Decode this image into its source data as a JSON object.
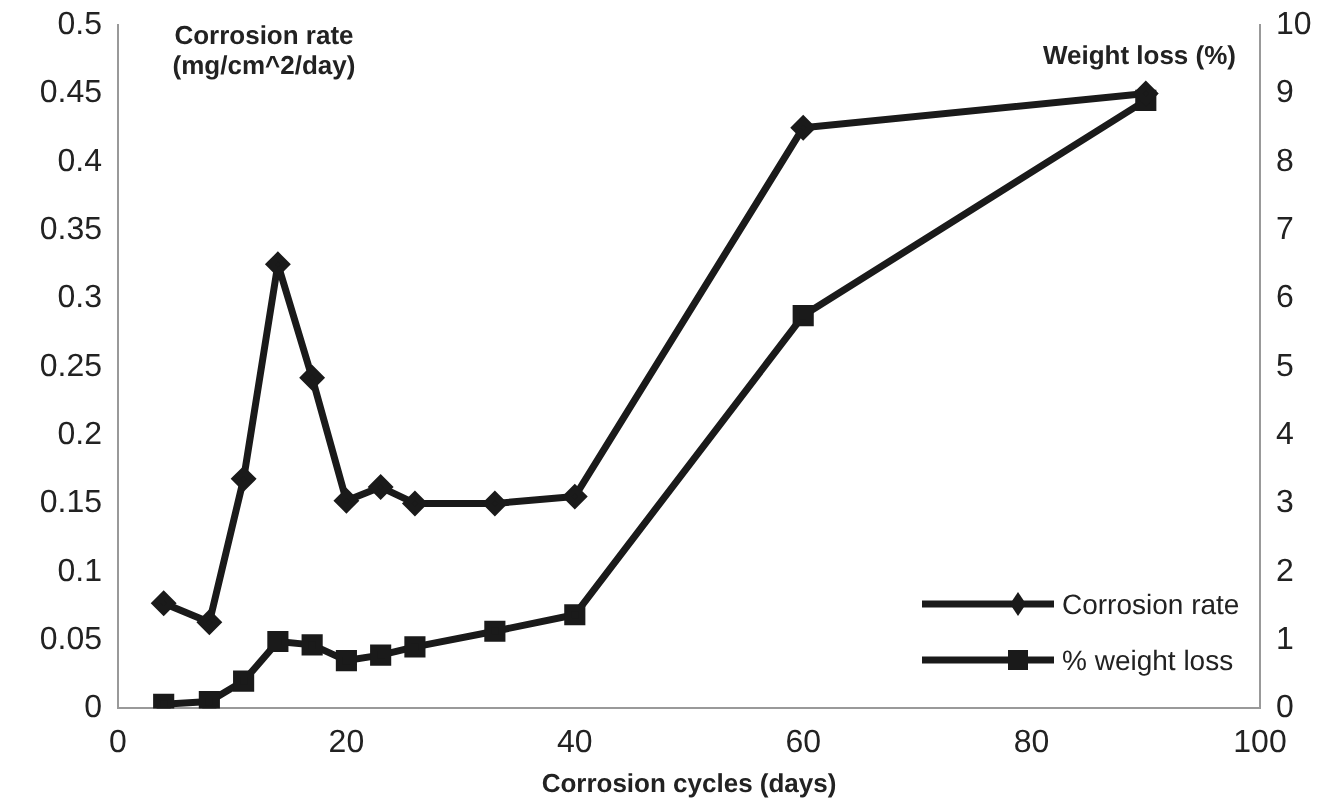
{
  "chart_data": {
    "type": "line",
    "xlabel": "Corrosion cycles (days)",
    "ylabel": "Corrosion rate (mg/cm^2/day)",
    "y2label": "Weight loss (%)",
    "x": [
      4,
      8,
      11,
      14,
      17,
      20,
      23,
      26,
      33,
      40,
      60,
      90
    ],
    "series": [
      {
        "name": "Corrosion rate",
        "color": "#1a1a1a",
        "marker": "diamond",
        "values": [
          0.077,
          0.063,
          0.168,
          0.325,
          0.242,
          0.152,
          0.162,
          0.15,
          0.15,
          0.155,
          0.425,
          0.45
        ]
      },
      {
        "name": "% weight loss",
        "color": "#1a1a1a",
        "marker": "square",
        "axis": "y2",
        "values": [
          0.06,
          0.1,
          0.4,
          0.98,
          0.93,
          0.7,
          0.78,
          0.9,
          1.13,
          1.37,
          5.75,
          8.9
        ]
      }
    ],
    "xlim": [
      0,
      100
    ],
    "xticks": [
      0,
      20,
      40,
      60,
      80,
      100
    ],
    "ylim": [
      0,
      0.5
    ],
    "yticks": [
      0,
      0.05,
      0.1,
      0.15,
      0.2,
      0.25,
      0.3,
      0.35,
      0.4,
      0.45,
      0.5
    ],
    "y2lim": [
      0,
      10
    ],
    "y2ticks": [
      0,
      1,
      2,
      3,
      4,
      5,
      6,
      7,
      8,
      9,
      10
    ],
    "grid": false,
    "legend": "bottom right",
    "line_style": "solid"
  }
}
